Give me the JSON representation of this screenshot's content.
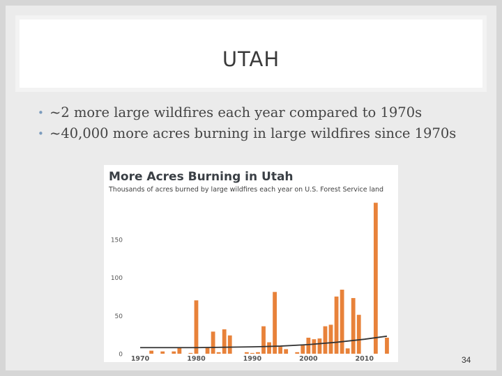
{
  "slide": {
    "title": "UTAH",
    "bullets": [
      "~2 more large wildfires each year compared to 1970s",
      "~40,000 more acres burning in large wildfires since 1970s"
    ],
    "bullet_glyph": "•",
    "page_number": "34"
  },
  "chart_data": {
    "type": "bar",
    "title": "More Acres Burning in Utah",
    "subtitle": "Thousands of acres burned by large wildfires each year on U.S. Forest Service land",
    "xlabel": "",
    "ylabel": "",
    "ylim": [
      0,
      200
    ],
    "yticks": [
      0,
      50,
      100,
      150
    ],
    "xticks": [
      1970,
      1980,
      1990,
      2000,
      2010
    ],
    "grid": false,
    "bar_color": "#e8823a",
    "trend_color": "#333333",
    "categories": [
      1972,
      1974,
      1976,
      1977,
      1979,
      1980,
      1982,
      1983,
      1984,
      1985,
      1986,
      1989,
      1990,
      1991,
      1992,
      1993,
      1994,
      1995,
      1996,
      1998,
      1999,
      2000,
      2001,
      2002,
      2003,
      2004,
      2005,
      2006,
      2007,
      2008,
      2009,
      2012,
      2014
    ],
    "values": [
      4,
      3,
      3,
      8,
      1,
      70,
      8,
      29,
      2,
      32,
      24,
      2,
      1,
      2,
      36,
      15,
      81,
      9,
      6,
      2,
      12,
      21,
      19,
      20,
      36,
      38,
      75,
      84,
      7,
      73,
      51,
      198,
      21
    ],
    "trend": {
      "x": [
        1970,
        1980,
        1990,
        1995,
        2000,
        2005,
        2010,
        2014
      ],
      "y": [
        8,
        8,
        9,
        10,
        12,
        15,
        19,
        23
      ]
    }
  }
}
